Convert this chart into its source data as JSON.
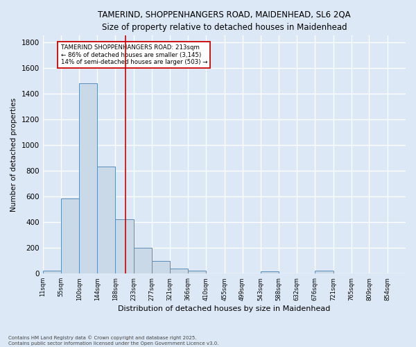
{
  "title_line1": "TAMERIND, SHOPPENHANGERS ROAD, MAIDENHEAD, SL6 2QA",
  "title_line2": "Size of property relative to detached houses in Maidenhead",
  "xlabel": "Distribution of detached houses by size in Maidenhead",
  "ylabel": "Number of detached properties",
  "bar_edges": [
    11,
    55,
    100,
    144,
    188,
    233,
    277,
    321,
    366,
    410,
    455,
    499,
    543,
    588,
    632,
    676,
    721,
    765,
    809,
    854,
    898
  ],
  "bar_heights": [
    20,
    585,
    1480,
    830,
    420,
    200,
    100,
    38,
    25,
    0,
    0,
    0,
    15,
    0,
    0,
    20,
    0,
    0,
    0,
    0
  ],
  "bar_color": "#c9d9e8",
  "bar_edgecolor": "#5b8db8",
  "vline_x": 213,
  "vline_color": "#cc0000",
  "ylim": [
    0,
    1850
  ],
  "yticks": [
    0,
    200,
    400,
    600,
    800,
    1000,
    1200,
    1400,
    1600,
    1800
  ],
  "annotation_text": "TAMERIND SHOPPENHANGERS ROAD: 213sqm\n← 86% of detached houses are smaller (3,145)\n14% of semi-detached houses are larger (503) →",
  "annotation_box_color": "white",
  "annotation_box_edgecolor": "#cc0000",
  "background_color": "#dce8f5",
  "grid_color": "white",
  "footer_line1": "Contains HM Land Registry data © Crown copyright and database right 2025.",
  "footer_line2": "Contains public sector information licensed under the Open Government Licence v3.0."
}
